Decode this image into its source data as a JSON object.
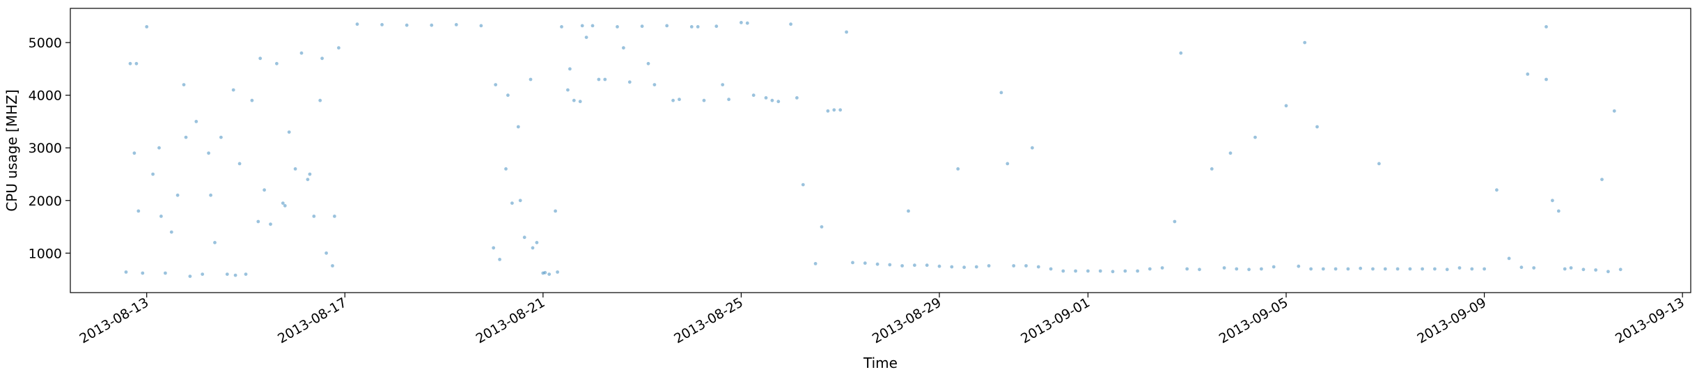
{
  "chart_data": {
    "type": "scatter",
    "title": "",
    "xlabel": "Time",
    "ylabel": "CPU usage [MHZ]",
    "x_is_date": true,
    "xlim": [
      "2013-08-11T11:00",
      "2013-09-13T04:00"
    ],
    "ylim": [
      250,
      5650
    ],
    "x_ticks": [
      "2013-08-13",
      "2013-08-17",
      "2013-08-21",
      "2013-08-25",
      "2013-08-29",
      "2013-09-01",
      "2013-09-05",
      "2013-09-09",
      "2013-09-13"
    ],
    "y_ticks": [
      1000,
      2000,
      3000,
      4000,
      5000
    ],
    "grid": false,
    "legend": "none",
    "marker_color": "#1f77b4",
    "marker_opacity": 0.45,
    "series": [
      {
        "x": [
          "2013-08-12T14:00",
          "2013-08-12T16:00",
          "2013-08-12T18:00",
          "2013-08-12T20:00",
          "2013-08-12T22:00",
          "2013-08-13T00:00",
          "2013-08-13T03:00",
          "2013-08-13T06:00",
          "2013-08-13T09:00",
          "2013-08-13T12:00",
          "2013-08-13T15:00",
          "2013-08-13T18:00",
          "2013-08-13T21:00",
          "2013-08-14T00:00",
          "2013-08-14T03:00",
          "2013-08-14T06:00",
          "2013-08-14T09:00",
          "2013-08-14T12:00",
          "2013-08-14T15:00",
          "2013-08-14T18:00",
          "2013-08-14T21:00",
          "2013-08-15T00:00",
          "2013-08-15T03:00",
          "2013-08-15T06:00",
          "2013-08-15T09:00",
          "2013-08-15T12:00",
          "2013-08-15T15:00",
          "2013-08-15T18:00",
          "2013-08-15T21:00",
          "2013-08-16T00:00",
          "2013-08-16T03:00",
          "2013-08-16T06:00",
          "2013-08-16T09:00",
          "2013-08-16T12:00",
          "2013-08-16T15:00",
          "2013-08-16T18:00",
          "2013-08-16T21:00",
          "2013-08-17T06:00",
          "2013-08-17T18:00",
          "2013-08-18T06:00",
          "2013-08-18T18:00",
          "2013-08-19T06:00",
          "2013-08-19T18:00",
          "2013-08-20T00:00",
          "2013-08-20T03:00",
          "2013-08-20T06:00",
          "2013-08-20T09:00",
          "2013-08-20T12:00",
          "2013-08-20T15:00",
          "2013-08-20T18:00",
          "2013-08-20T21:00",
          "2013-08-21T00:00",
          "2013-08-21T03:00",
          "2013-08-21T06:00",
          "2013-08-21T09:00",
          "2013-08-21T12:00",
          "2013-08-21T15:00",
          "2013-08-21T18:00",
          "2013-08-21T21:00",
          "2013-08-22T00:00",
          "2013-08-22T06:00",
          "2013-08-22T12:00",
          "2013-08-22T18:00",
          "2013-08-23T00:00",
          "2013-08-23T06:00",
          "2013-08-23T12:00",
          "2013-08-23T18:00",
          "2013-08-24T00:00",
          "2013-08-24T06:00",
          "2013-08-24T12:00",
          "2013-08-24T18:00",
          "2013-08-25T00:00",
          "2013-08-25T06:00",
          "2013-08-25T12:00",
          "2013-08-25T18:00",
          "2013-08-26T00:00",
          "2013-08-26T06:00",
          "2013-08-26T12:00",
          "2013-08-26T18:00",
          "2013-08-27T00:00",
          "2013-08-27T06:00",
          "2013-08-27T12:00",
          "2013-08-27T18:00",
          "2013-08-28T00:00",
          "2013-08-28T06:00",
          "2013-08-28T12:00",
          "2013-08-28T18:00",
          "2013-08-29T00:00",
          "2013-08-29T06:00",
          "2013-08-29T12:00",
          "2013-08-29T18:00",
          "2013-08-30T00:00",
          "2013-08-30T06:00",
          "2013-08-30T12:00",
          "2013-08-30T18:00",
          "2013-08-31T00:00",
          "2013-08-31T06:00",
          "2013-08-31T12:00",
          "2013-08-31T18:00",
          "2013-09-01T00:00",
          "2013-09-01T06:00",
          "2013-09-01T12:00",
          "2013-09-01T18:00",
          "2013-09-02T00:00",
          "2013-09-02T06:00",
          "2013-09-02T12:00",
          "2013-09-02T18:00",
          "2013-09-03T00:00",
          "2013-09-03T06:00",
          "2013-09-03T12:00",
          "2013-09-03T18:00",
          "2013-09-04T00:00",
          "2013-09-04T06:00",
          "2013-09-04T12:00",
          "2013-09-04T18:00",
          "2013-09-05T00:00",
          "2013-09-05T06:00",
          "2013-09-05T12:00",
          "2013-09-05T18:00",
          "2013-09-06T00:00",
          "2013-09-06T06:00",
          "2013-09-06T12:00",
          "2013-09-06T18:00",
          "2013-09-07T00:00",
          "2013-09-07T06:00",
          "2013-09-07T12:00",
          "2013-09-07T18:00",
          "2013-09-08T00:00",
          "2013-09-08T06:00",
          "2013-09-08T12:00",
          "2013-09-08T18:00",
          "2013-09-09T00:00",
          "2013-09-09T06:00",
          "2013-09-09T12:00",
          "2013-09-09T18:00",
          "2013-09-10T00:00",
          "2013-09-10T06:00",
          "2013-09-10T12:00",
          "2013-09-10T18:00",
          "2013-09-11T00:00",
          "2013-09-11T06:00",
          "2013-09-11T12:00",
          "2013-09-11T18:00",
          "2013-08-12T19:00",
          "2013-08-13T07:00",
          "2013-08-13T19:00",
          "2013-08-14T07:00",
          "2013-08-14T19:00",
          "2013-08-15T07:00",
          "2013-08-15T19:00",
          "2013-08-16T07:00",
          "2013-08-16T13:00",
          "2013-08-16T19:00",
          "2013-08-20T01:00",
          "2013-08-20T07:00",
          "2013-08-20T13:00",
          "2013-08-20T19:00",
          "2013-08-21T01:00",
          "2013-08-21T07:00",
          "2013-08-21T13:00",
          "2013-08-21T19:00",
          "2013-08-22T03:00",
          "2013-08-22T15:00",
          "2013-08-23T03:00",
          "2013-08-23T15:00",
          "2013-08-24T03:00",
          "2013-08-24T15:00",
          "2013-08-25T03:00",
          "2013-08-25T15:00",
          "2013-08-26T03:00",
          "2013-08-26T15:00",
          "2013-08-26T21:00",
          "2013-08-27T03:00",
          "2013-08-28T09:00",
          "2013-08-29T09:00",
          "2013-08-30T09:00",
          "2013-08-30T21:00",
          "2013-09-02T21:00",
          "2013-09-03T21:00",
          "2013-09-04T09:00",
          "2013-09-05T09:00",
          "2013-09-05T15:00",
          "2013-09-06T21:00",
          "2013-09-09T21:00",
          "2013-09-10T06:00",
          "2013-09-10T09:00",
          "2013-09-10T15:00",
          "2013-09-11T09:00",
          "2013-09-11T15:00"
        ],
        "y": [
          640,
          4600,
          2900,
          1800,
          620,
          5300,
          2500,
          3000,
          620,
          1400,
          2100,
          4200,
          560,
          3500,
          600,
          2900,
          1200,
          3200,
          600,
          4100,
          2700,
          600,
          3900,
          1600,
          2200,
          1550,
          4600,
          1950,
          3300,
          2600,
          4800,
          2400,
          1700,
          3900,
          1000,
          760,
          4900,
          5350,
          5340,
          5330,
          5330,
          5340,
          5320,
          1100,
          880,
          2600,
          1950,
          3400,
          1300,
          4300,
          1200,
          620,
          600,
          1800,
          5300,
          4100,
          3900,
          3880,
          5100,
          5320,
          4300,
          5300,
          4250,
          5310,
          4200,
          5320,
          3920,
          5300,
          3900,
          5310,
          3920,
          5380,
          4000,
          3950,
          3880,
          5350,
          2300,
          800,
          3700,
          3720,
          820,
          810,
          790,
          780,
          760,
          770,
          770,
          750,
          740,
          730,
          740,
          760,
          4050,
          760,
          760,
          740,
          700,
          660,
          660,
          660,
          660,
          650,
          660,
          660,
          700,
          720,
          1600,
          700,
          690,
          2600,
          720,
          700,
          690,
          700,
          740,
          3800,
          750,
          700,
          700,
          700,
          700,
          710,
          700,
          700,
          700,
          700,
          700,
          700,
          690,
          720,
          700,
          700,
          2200,
          900,
          730,
          720,
          4300,
          1800,
          720,
          690,
          680,
          650,
          690,
          4600,
          1700,
          3200,
          2100,
          580,
          4700,
          1900,
          2500,
          4700,
          1700,
          4200,
          4000,
          2000,
          1100,
          630,
          640,
          4500,
          5320,
          4300,
          4900,
          4600,
          3900,
          5300,
          4200,
          5370,
          3900,
          3950,
          1500,
          3720,
          5200,
          1800,
          2600,
          2700,
          3000,
          4800,
          2900,
          3200,
          5000,
          3400,
          2700,
          4400,
          5300,
          2000,
          700,
          2400,
          3700
        ]
      }
    ]
  }
}
